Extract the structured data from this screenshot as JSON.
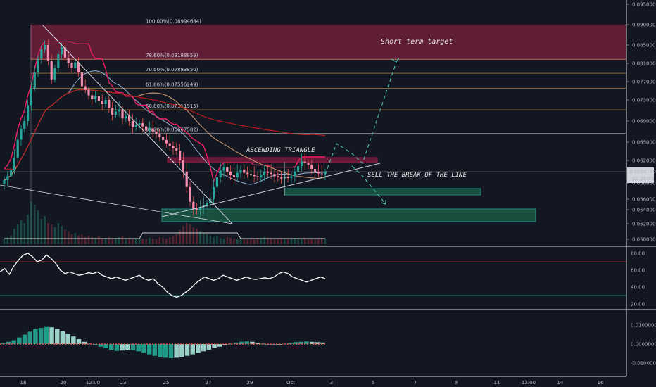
{
  "chart_data": {
    "type": "candlestick",
    "pair_quote_unit": "price",
    "price_axis_ticks": [
      "0.09500000",
      "0.09000000",
      "0.08500000",
      "0.08100000",
      "0.07700000",
      "0.07300000",
      "0.06900000",
      "0.06500000",
      "0.06200000",
      "0.05800000",
      "0.05600000",
      "0.05400000",
      "0.05200000",
      "0.05000000"
    ],
    "ylim": [
      0.049,
      0.097
    ],
    "current_price": "0.05987400",
    "countdown": "02:38:39",
    "date_axis_ticks": [
      "18",
      "20",
      "12:00",
      "23",
      "25",
      "27",
      "29",
      "Oct",
      "3",
      "5",
      "7",
      "9",
      "11",
      "12:00",
      "14",
      "16"
    ],
    "fibonacci_levels": [
      {
        "label": "100.00%(0.08994684)",
        "price": 0.08994684,
        "color": "#d1d4dc"
      },
      {
        "label": "78.60%(0.08188859)",
        "price": 0.08188859,
        "color": "#ffb74d"
      },
      {
        "label": "70.50%(0.07883850)",
        "price": 0.0788385,
        "color": "#ffb74d"
      },
      {
        "label": "61.80%(0.07556249)",
        "price": 0.07556249,
        "color": "#ffb74d"
      },
      {
        "label": "50.00%(0.07111915)",
        "price": 0.07111915,
        "color": "#ffb74d"
      },
      {
        "label": "38.20%(0.06667582)",
        "price": 0.06667582,
        "color": "#d1d4dc"
      }
    ],
    "annotations": {
      "short_term_target": "Short term target",
      "ascending_triangle": "ASCENDING TRIANGLE",
      "sell_break": "SELL THE BREAK OF THE LINE"
    },
    "close_series": [
      0.0585,
      0.0592,
      0.0603,
      0.0625,
      0.0655,
      0.0675,
      0.069,
      0.072,
      0.0755,
      0.079,
      0.082,
      0.084,
      0.085,
      0.0815,
      0.0775,
      0.08,
      0.083,
      0.0845,
      0.0822,
      0.081,
      0.08,
      0.0812,
      0.079,
      0.076,
      0.0752,
      0.074,
      0.0732,
      0.0738,
      0.0728,
      0.0722,
      0.073,
      0.0715,
      0.0702,
      0.0708,
      0.0712,
      0.0695,
      0.07,
      0.069,
      0.0678,
      0.0682,
      0.0686,
      0.068,
      0.0672,
      0.0676,
      0.067,
      0.0665,
      0.066,
      0.0654,
      0.0648,
      0.0644,
      0.064,
      0.0636,
      0.062,
      0.06,
      0.0575,
      0.0555,
      0.0542,
      0.054,
      0.0545,
      0.0548,
      0.0552,
      0.056,
      0.0575,
      0.059,
      0.0602,
      0.0608,
      0.06,
      0.0594,
      0.059,
      0.0598,
      0.0604,
      0.0598,
      0.0596,
      0.0594,
      0.0592,
      0.059,
      0.0595,
      0.06,
      0.0598,
      0.0596,
      0.0592,
      0.059,
      0.0588,
      0.059,
      0.0589,
      0.0592,
      0.06,
      0.061,
      0.0618,
      0.0615,
      0.0612,
      0.0605,
      0.06,
      0.0597,
      0.0596,
      0.0598
    ],
    "rsi": {
      "levels": [
        "80.00",
        "60.00",
        "40.00",
        "20.00"
      ],
      "overbought": 70,
      "oversold": 30,
      "values": [
        58,
        62,
        55,
        65,
        72,
        78,
        80,
        76,
        70,
        72,
        78,
        74,
        68,
        60,
        56,
        58,
        56,
        54,
        55,
        57,
        56,
        58,
        54,
        52,
        50,
        52,
        50,
        48,
        50,
        52,
        54,
        50,
        48,
        50,
        44,
        40,
        34,
        30,
        28,
        30,
        34,
        38,
        44,
        48,
        52,
        50,
        48,
        50,
        54,
        52,
        50,
        48,
        50,
        52,
        50,
        49,
        50,
        51,
        50,
        52,
        56,
        58,
        56,
        52,
        50,
        48,
        46,
        48,
        50,
        52,
        50
      ]
    },
    "macd": {
      "levels": [
        "0.01000000",
        "0.00000000",
        "-0.01000000"
      ],
      "histogram": [
        0.0005,
        0.0012,
        0.002,
        0.0035,
        0.005,
        0.0065,
        0.0078,
        0.0085,
        0.009,
        0.0088,
        0.008,
        0.0068,
        0.0054,
        0.004,
        0.0026,
        0.0012,
        0.0002,
        -0.0006,
        -0.0014,
        -0.0022,
        -0.003,
        -0.0036,
        -0.0034,
        -0.003,
        -0.0032,
        -0.0038,
        -0.0046,
        -0.0054,
        -0.0062,
        -0.0068,
        -0.0072,
        -0.0074,
        -0.0072,
        -0.0068,
        -0.0062,
        -0.0054,
        -0.0046,
        -0.0038,
        -0.003,
        -0.0022,
        -0.0014,
        -0.0006,
        0.0002,
        0.0008,
        0.0012,
        0.0014,
        0.0012,
        0.0006,
        0.0002,
        -0.0002,
        -0.0004,
        -0.0002,
        0.0002,
        0.0006,
        0.001,
        0.0012,
        0.0014,
        0.0012,
        0.001,
        0.0008
      ]
    }
  }
}
